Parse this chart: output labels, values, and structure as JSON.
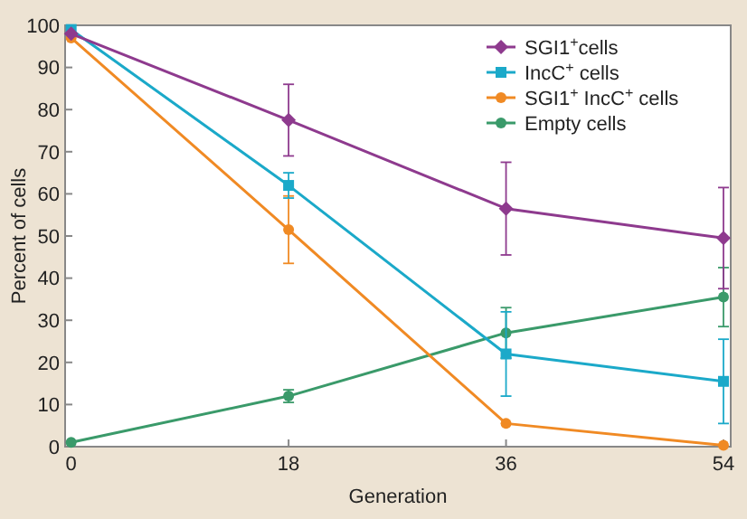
{
  "chart_data": {
    "type": "line",
    "xlabel": "Generation",
    "ylabel": "Percent of cells",
    "x": [
      0,
      18,
      36,
      54
    ],
    "xlim": [
      -0.5,
      54.6
    ],
    "xticks": [
      0,
      18,
      36,
      54
    ],
    "ylim": [
      0,
      100
    ],
    "yticks": [
      0,
      10,
      20,
      30,
      40,
      50,
      60,
      70,
      80,
      90,
      100
    ],
    "legend": "top right",
    "grid": false,
    "series": [
      {
        "name": "SGI1$^{+}$cells",
        "color": "#8e3a8e",
        "marker": "diamond",
        "values": [
          98,
          77.5,
          56.5,
          49.5
        ],
        "errors": [
          null,
          8.5,
          11,
          12
        ]
      },
      {
        "name": "IncC$^{+}$ cells",
        "color": "#1ba9c9",
        "marker": "square",
        "values": [
          99,
          62,
          22,
          15.5
        ],
        "errors": [
          null,
          3,
          10,
          10
        ]
      },
      {
        "name": "SGI1$^{+}$ IncC$^{+}$ cells",
        "color": "#f08a24",
        "marker": "circle",
        "values": [
          97,
          51.5,
          5.5,
          0.3
        ],
        "errors": [
          null,
          8,
          null,
          null
        ]
      },
      {
        "name": "Empty cells",
        "color": "#3a9a6a",
        "marker": "circle",
        "values": [
          1,
          12,
          27,
          35.5
        ],
        "errors": [
          null,
          1.5,
          6,
          7
        ]
      }
    ]
  }
}
